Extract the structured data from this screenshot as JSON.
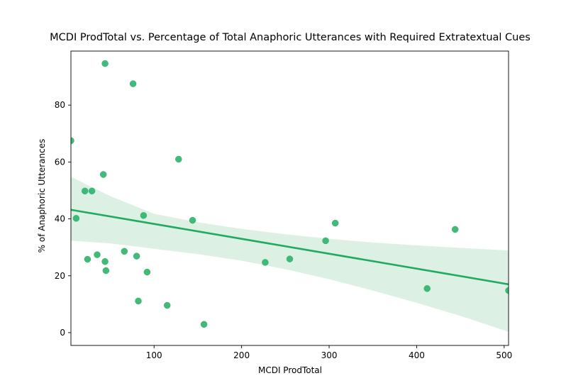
{
  "chart_data": {
    "type": "scatter",
    "title": "MCDI ProdTotal vs. Percentage of Total Anaphoric Utterances with Required Extratextual Cues",
    "xlabel": "MCDI ProdTotal",
    "ylabel": "% of Anaphoric Utterances",
    "xlim": [
      5,
      505
    ],
    "ylim": [
      -4.5,
      99
    ],
    "xticks": [
      100,
      200,
      300,
      400,
      500
    ],
    "yticks": [
      0,
      20,
      40,
      60,
      80
    ],
    "grid": false,
    "colors": {
      "points": "#2eb36b",
      "line": "#22aa60",
      "band": "#dcf1e4"
    },
    "points": [
      {
        "x": 5,
        "y": 67.5
      },
      {
        "x": 11,
        "y": 40.2
      },
      {
        "x": 21,
        "y": 49.8
      },
      {
        "x": 29,
        "y": 49.8
      },
      {
        "x": 24,
        "y": 25.8
      },
      {
        "x": 35,
        "y": 27.4
      },
      {
        "x": 42,
        "y": 55.6
      },
      {
        "x": 44,
        "y": 94.6
      },
      {
        "x": 44,
        "y": 25.0
      },
      {
        "x": 45,
        "y": 21.8
      },
      {
        "x": 66,
        "y": 28.6
      },
      {
        "x": 76,
        "y": 87.5
      },
      {
        "x": 80,
        "y": 26.9
      },
      {
        "x": 82,
        "y": 11.1
      },
      {
        "x": 88,
        "y": 41.2
      },
      {
        "x": 92,
        "y": 21.3
      },
      {
        "x": 115,
        "y": 9.6
      },
      {
        "x": 128,
        "y": 61.0
      },
      {
        "x": 144,
        "y": 39.5
      },
      {
        "x": 157,
        "y": 2.9
      },
      {
        "x": 227,
        "y": 24.7
      },
      {
        "x": 255,
        "y": 25.9
      },
      {
        "x": 296,
        "y": 32.3
      },
      {
        "x": 307,
        "y": 38.5
      },
      {
        "x": 412,
        "y": 15.5
      },
      {
        "x": 444,
        "y": 36.3
      },
      {
        "x": 505,
        "y": 14.8
      }
    ],
    "regression": {
      "x": [
        5,
        505
      ],
      "y": [
        43.2,
        17.0
      ]
    },
    "confidence_band": {
      "x": [
        5,
        50,
        100,
        150,
        200,
        250,
        300,
        350,
        400,
        450,
        505
      ],
      "upper": [
        54.8,
        48.0,
        41.8,
        38.8,
        36.5,
        34.6,
        33.0,
        31.7,
        30.7,
        29.8,
        28.9
      ],
      "lower": [
        32.3,
        31.4,
        29.5,
        27.6,
        25.3,
        22.3,
        18.8,
        14.8,
        10.5,
        5.9,
        0.3
      ]
    }
  }
}
